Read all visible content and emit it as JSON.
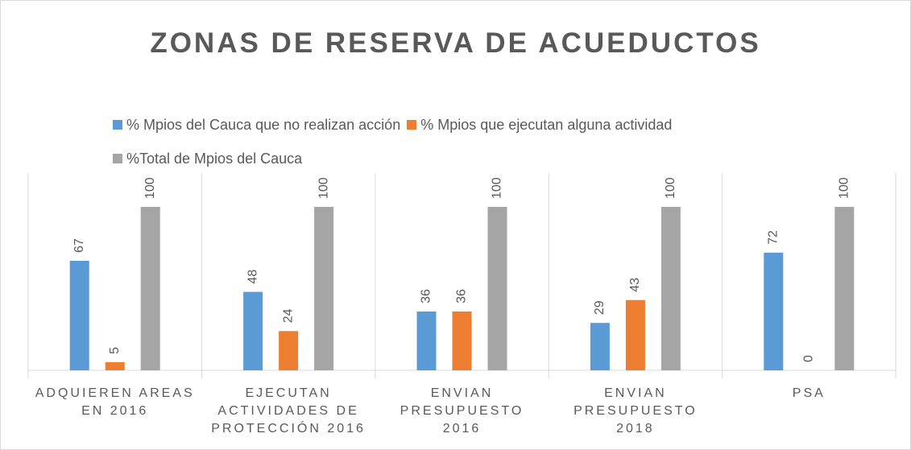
{
  "chart_data": {
    "type": "bar",
    "title": "ZONAS DE RESERVA DE ACUEDUCTOS",
    "categories": [
      "ADQUIEREN AREAS EN 2016",
      "EJECUTAN ACTIVIDADES DE PROTECCIÓN 2016",
      "ENVIAN PRESUPUESTO 2016",
      "ENVIAN PRESUPUESTO 2018",
      "PSA"
    ],
    "series": [
      {
        "name": "% Mpios del Cauca que no realizan acción",
        "color": "#5b9bd5",
        "values": [
          67,
          48,
          36,
          29,
          72
        ]
      },
      {
        "name": "% Mpios que ejecutan alguna actividad",
        "color": "#ed7d31",
        "values": [
          5,
          24,
          36,
          43,
          0
        ]
      },
      {
        "name": "%Total de Mpios del Cauca",
        "color": "#a5a5a5",
        "values": [
          100,
          100,
          100,
          100,
          100
        ]
      }
    ],
    "ylim": [
      0,
      100
    ],
    "legend": "top"
  }
}
